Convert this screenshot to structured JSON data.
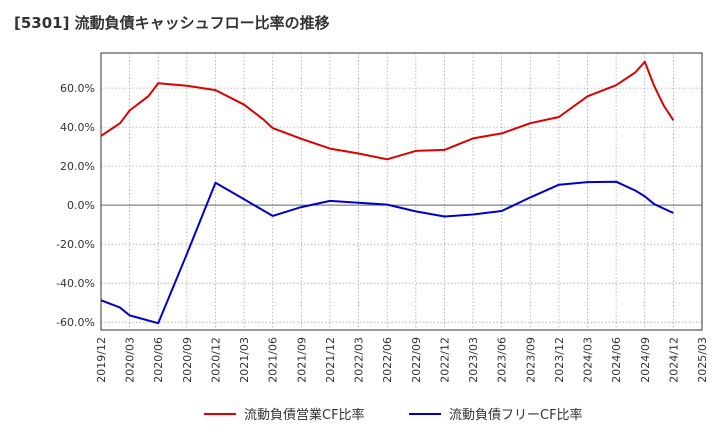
{
  "chart_data": {
    "type": "line",
    "title": "[5301]  流動負債キャッシュフロー比率の推移",
    "x": [
      "2019/12",
      "2020/03",
      "2020/06",
      "2020/09",
      "2020/12",
      "2021/03",
      "2021/06",
      "2021/09",
      "2021/12",
      "2022/03",
      "2022/06",
      "2022/09",
      "2022/12",
      "2023/03",
      "2023/06",
      "2023/09",
      "2023/12",
      "2024/03",
      "2024/06",
      "2024/09",
      "2024/12",
      "2025/03"
    ],
    "xlim": [
      "2019/12",
      "2025/03"
    ],
    "ylim": [
      -64,
      78
    ],
    "yticks": [
      -60,
      -40,
      -20,
      0,
      20,
      40,
      60
    ],
    "ytick_labels": [
      "-60.0%",
      "-40.0%",
      "-20.0%",
      "0.0%",
      "20.0%",
      "40.0%",
      "60.0%"
    ],
    "grid": true,
    "legend_position": "bottom",
    "series": [
      {
        "name": "流動負債営業CF比率",
        "color": "#dd0000",
        "points": [
          [
            "2019/12",
            35.5
          ],
          [
            "2020/02",
            42.0
          ],
          [
            "2020/03",
            48.5
          ],
          [
            "2020/05",
            56.0
          ],
          [
            "2020/06",
            62.5
          ],
          [
            "2020/09",
            61.2
          ],
          [
            "2020/12",
            59.0
          ],
          [
            "2021/03",
            51.5
          ],
          [
            "2021/05",
            44.0
          ],
          [
            "2021/06",
            39.5
          ],
          [
            "2021/09",
            34.0
          ],
          [
            "2021/12",
            29.0
          ],
          [
            "2022/03",
            26.5
          ],
          [
            "2022/06",
            23.5
          ],
          [
            "2022/09",
            27.8
          ],
          [
            "2022/12",
            28.3
          ],
          [
            "2023/03",
            34.2
          ],
          [
            "2023/06",
            36.8
          ],
          [
            "2023/09",
            42.0
          ],
          [
            "2023/12",
            45.2
          ],
          [
            "2024/03",
            55.8
          ],
          [
            "2024/06",
            61.5
          ],
          [
            "2024/08",
            68.0
          ],
          [
            "2024/09",
            73.5
          ],
          [
            "2024/10",
            61.0
          ],
          [
            "2024/11",
            51.0
          ],
          [
            "2024/12",
            43.5
          ]
        ]
      },
      {
        "name": "流動負債フリーCF比率",
        "color": "#0000cc",
        "points": [
          [
            "2019/12",
            -48.8
          ],
          [
            "2020/02",
            -52.5
          ],
          [
            "2020/03",
            -56.5
          ],
          [
            "2020/06",
            -60.5
          ],
          [
            "2020/09",
            -25.0
          ],
          [
            "2020/12",
            11.5
          ],
          [
            "2021/03",
            3.0
          ],
          [
            "2021/06",
            -5.5
          ],
          [
            "2021/09",
            -1.0
          ],
          [
            "2021/12",
            2.2
          ],
          [
            "2022/03",
            1.2
          ],
          [
            "2022/06",
            0.3
          ],
          [
            "2022/09",
            -3.2
          ],
          [
            "2022/12",
            -5.8
          ],
          [
            "2023/03",
            -4.8
          ],
          [
            "2023/06",
            -3.0
          ],
          [
            "2023/09",
            4.0
          ],
          [
            "2023/12",
            10.5
          ],
          [
            "2024/03",
            11.8
          ],
          [
            "2024/06",
            12.0
          ],
          [
            "2024/08",
            7.5
          ],
          [
            "2024/09",
            4.5
          ],
          [
            "2024/10",
            0.5
          ],
          [
            "2024/12",
            -4.0
          ]
        ]
      }
    ]
  }
}
